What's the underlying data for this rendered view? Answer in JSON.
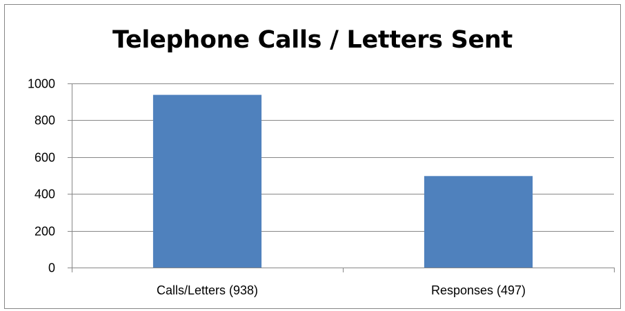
{
  "chart_data": {
    "type": "bar",
    "title": "Telephone Calls / Letters Sent",
    "categories": [
      "Calls/Letters (938)",
      "Responses (497)"
    ],
    "values": [
      938,
      497
    ],
    "ylim": [
      0,
      1000
    ],
    "yticks": [
      0,
      200,
      400,
      600,
      800,
      1000
    ],
    "ytick_labels": [
      "0",
      "200",
      "400",
      "600",
      "800",
      "1000"
    ],
    "grid": true,
    "legend": "none",
    "bar_color": "#4F81BD",
    "gridline_color": "#868686"
  }
}
